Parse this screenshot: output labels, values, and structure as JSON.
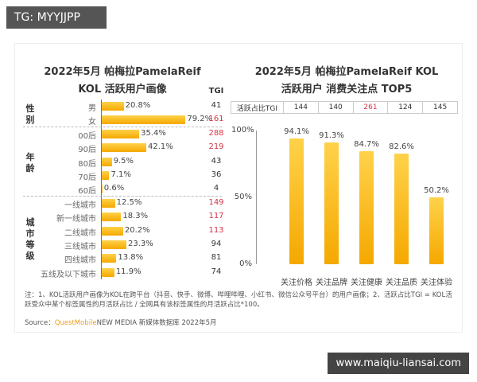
{
  "header_tag": "TG: MYYJJPP",
  "watermark": "www.maiqiu-liansai.com",
  "chart_data": [
    {
      "type": "bar",
      "orientation": "horizontal",
      "title_line1": "2022年5月 帕梅拉PamelaReif",
      "title_line2": "KOL 活跃用户画像",
      "tgi_header": "TGI",
      "groups": [
        {
          "name": "性别",
          "categories": [
            "男",
            "女"
          ],
          "values": [
            20.8,
            79.2
          ],
          "value_labels": [
            "20.8%",
            "79.2%"
          ],
          "tgi": [
            41,
            161
          ]
        },
        {
          "name": "年龄",
          "categories": [
            "00后",
            "90后",
            "80后",
            "70后",
            "60后"
          ],
          "values": [
            35.4,
            42.1,
            9.5,
            7.1,
            0.6
          ],
          "value_labels": [
            "35.4%",
            "42.1%",
            "9.5%",
            "7.1%",
            "0.6%"
          ],
          "tgi": [
            288,
            219,
            43,
            36,
            4
          ]
        },
        {
          "name": "城市等级",
          "categories": [
            "一线城市",
            "新一线城市",
            "二线城市",
            "三线城市",
            "四线城市",
            "五线及以下城市"
          ],
          "values": [
            12.5,
            18.3,
            20.2,
            23.3,
            13.8,
            11.9
          ],
          "value_labels": [
            "12.5%",
            "18.3%",
            "20.2%",
            "23.3%",
            "13.8%",
            "11.9%"
          ],
          "tgi": [
            149,
            117,
            113,
            94,
            81,
            74
          ]
        }
      ],
      "highlight_tgi_threshold": 100,
      "colors": {
        "bar": "#f5b400",
        "tgi_high": "#d0364a",
        "tgi_normal": "#333333"
      }
    },
    {
      "type": "bar",
      "orientation": "vertical",
      "title_line1": "2022年5月 帕梅拉PamelaReif KOL",
      "title_line2": "活跃用户 消费关注点 TOP5",
      "tgi_row_label": "活跃占比TGI",
      "categories": [
        "关注价格",
        "关注品牌",
        "关注健康",
        "关注品质",
        "关注体验"
      ],
      "values": [
        94.1,
        91.3,
        84.7,
        82.6,
        50.2
      ],
      "value_labels": [
        "94.1%",
        "91.3%",
        "84.7%",
        "82.6%",
        "50.2%"
      ],
      "tgi": [
        144,
        140,
        261,
        124,
        145
      ],
      "yticks": [
        "100%",
        "50%",
        "0%"
      ],
      "ylim": [
        0,
        100
      ],
      "colors": {
        "bar": "#f5b400",
        "tgi_high": "#d0364a"
      }
    }
  ],
  "note": "注：1、KOL活跃用户画像为KOL在跨平台（抖音、快手、微博、哔哩哔哩、小红书、微信公众号平台）的用户画像；2、活跃占比TGI = KOL活跃受众中某个标签属性的月活跃占比 / 全网具有该标签属性的月活跃占比*100。",
  "source": {
    "prefix": "Source：",
    "brand": "QuestMobile",
    "rest": "NEW MEDIA 新媒体数据库 2022年5月"
  }
}
